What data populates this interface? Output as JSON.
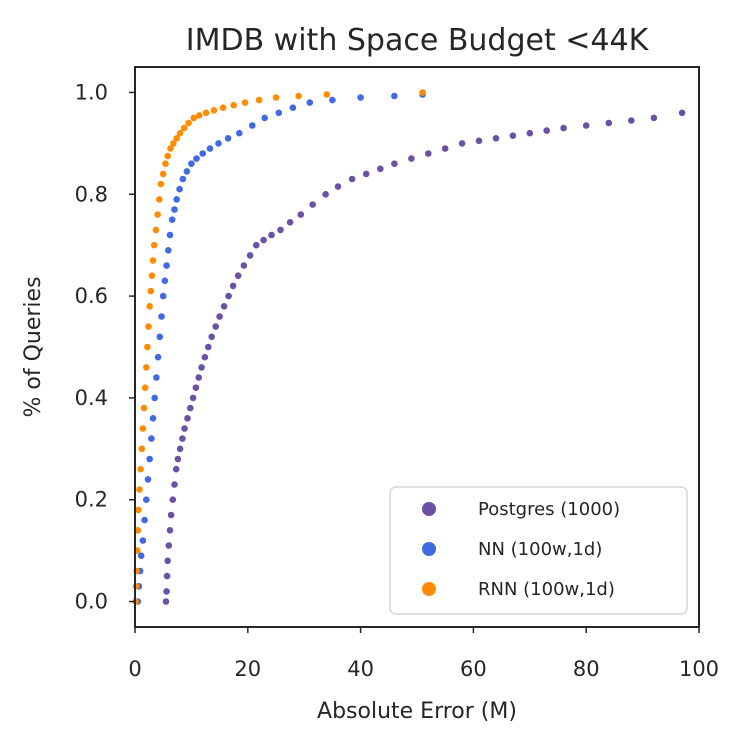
{
  "chart_data": {
    "type": "scatter",
    "title": "IMDB with Space Budget <44K",
    "xlabel": "Absolute Error (M)",
    "ylabel": "% of Queries",
    "xlim": [
      0,
      100
    ],
    "ylim": [
      -0.05,
      1.05
    ],
    "xticks": [
      0,
      20,
      40,
      60,
      80,
      100
    ],
    "yticks": [
      0.0,
      0.2,
      0.4,
      0.6,
      0.8,
      1.0
    ],
    "xtick_labels": [
      "0",
      "20",
      "40",
      "60",
      "80",
      "100"
    ],
    "ytick_labels": [
      "0.0",
      "0.2",
      "0.4",
      "0.6",
      "0.8",
      "1.0"
    ],
    "grid": false,
    "legend_position": "bottom-right",
    "series": [
      {
        "name": "Postgres (1000)",
        "color": "#6a51a3",
        "x": [
          5.5,
          5.6,
          5.7,
          5.8,
          6.0,
          6.2,
          6.4,
          6.7,
          7.0,
          7.3,
          7.6,
          8.0,
          8.4,
          8.8,
          9.3,
          9.8,
          10.3,
          10.8,
          11.3,
          11.8,
          12.4,
          13.0,
          13.6,
          14.3,
          15.0,
          15.8,
          16.6,
          17.4,
          18.3,
          19.3,
          20.4,
          21.5,
          22.8,
          24.2,
          25.8,
          27.5,
          29.4,
          31.5,
          33.8,
          36.0,
          38.5,
          41.0,
          43.5,
          46.0,
          49.0,
          52.0,
          55.0,
          58.0,
          61.0,
          64.0,
          67.0,
          70.0,
          73.0,
          76.0,
          80.0,
          84.0,
          88.0,
          92.0,
          97.0
        ],
        "y": [
          0.0,
          0.02,
          0.05,
          0.08,
          0.11,
          0.14,
          0.17,
          0.2,
          0.23,
          0.26,
          0.28,
          0.3,
          0.32,
          0.34,
          0.36,
          0.38,
          0.4,
          0.42,
          0.44,
          0.46,
          0.48,
          0.5,
          0.52,
          0.54,
          0.56,
          0.58,
          0.6,
          0.62,
          0.64,
          0.66,
          0.68,
          0.7,
          0.71,
          0.72,
          0.73,
          0.745,
          0.76,
          0.78,
          0.8,
          0.815,
          0.83,
          0.84,
          0.85,
          0.86,
          0.87,
          0.88,
          0.89,
          0.9,
          0.905,
          0.91,
          0.915,
          0.92,
          0.925,
          0.93,
          0.935,
          0.94,
          0.945,
          0.95,
          0.96
        ]
      },
      {
        "name": "NN (100w,1d)",
        "color": "#4169e1",
        "x": [
          0.5,
          0.7,
          0.9,
          1.1,
          1.4,
          1.7,
          2.0,
          2.3,
          2.6,
          2.9,
          3.2,
          3.5,
          3.8,
          4.1,
          4.4,
          4.7,
          5.0,
          5.3,
          5.6,
          5.9,
          6.2,
          6.6,
          7.0,
          7.4,
          7.9,
          8.5,
          9.2,
          10.0,
          10.9,
          12.0,
          13.3,
          14.8,
          16.5,
          18.5,
          20.8,
          23.0,
          25.5,
          28.0,
          31.0,
          35.0,
          40.0,
          46.0,
          51.0
        ],
        "y": [
          0.0,
          0.03,
          0.06,
          0.09,
          0.12,
          0.16,
          0.2,
          0.24,
          0.28,
          0.32,
          0.36,
          0.4,
          0.44,
          0.48,
          0.52,
          0.56,
          0.6,
          0.63,
          0.66,
          0.69,
          0.72,
          0.75,
          0.77,
          0.79,
          0.81,
          0.83,
          0.845,
          0.86,
          0.87,
          0.88,
          0.89,
          0.9,
          0.91,
          0.92,
          0.935,
          0.95,
          0.96,
          0.97,
          0.98,
          0.985,
          0.99,
          0.993,
          0.996
        ]
      },
      {
        "name": "RNN (100w,1d)",
        "color": "#ff8c00",
        "x": [
          0.1,
          0.2,
          0.3,
          0.4,
          0.5,
          0.6,
          0.8,
          1.0,
          1.2,
          1.4,
          1.6,
          1.8,
          2.0,
          2.2,
          2.4,
          2.6,
          2.8,
          3.0,
          3.2,
          3.4,
          3.7,
          4.0,
          4.3,
          4.6,
          5.0,
          5.4,
          5.8,
          6.3,
          6.8,
          7.4,
          8.0,
          8.7,
          9.5,
          10.4,
          11.4,
          12.6,
          14.0,
          15.6,
          17.5,
          19.5,
          22.0,
          25.0,
          29.0,
          34.0,
          51.0
        ],
        "y": [
          0.0,
          0.03,
          0.06,
          0.1,
          0.14,
          0.18,
          0.22,
          0.26,
          0.3,
          0.34,
          0.38,
          0.42,
          0.46,
          0.5,
          0.54,
          0.58,
          0.61,
          0.64,
          0.67,
          0.7,
          0.73,
          0.76,
          0.79,
          0.82,
          0.84,
          0.86,
          0.875,
          0.89,
          0.9,
          0.91,
          0.92,
          0.93,
          0.94,
          0.95,
          0.955,
          0.96,
          0.965,
          0.97,
          0.975,
          0.98,
          0.985,
          0.99,
          0.993,
          0.996,
          1.0
        ]
      }
    ]
  }
}
